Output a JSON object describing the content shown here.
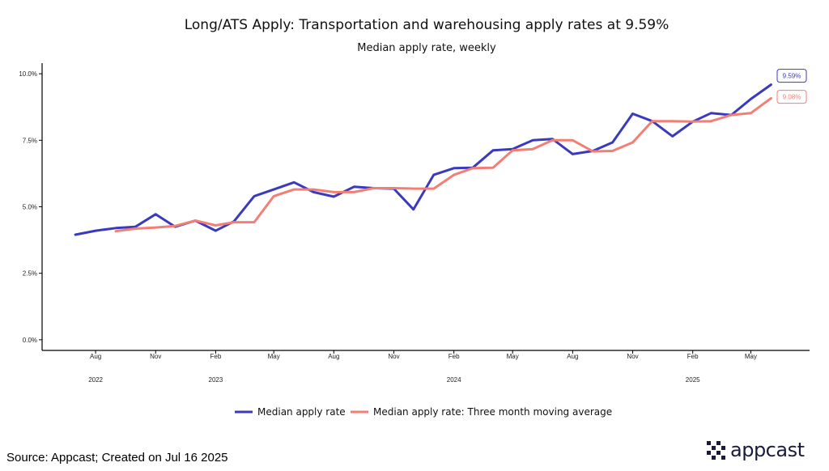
{
  "chart_data": {
    "type": "line",
    "title": "Long/ATS Apply: Transportation and warehousing apply rates at 9.59%",
    "subtitle": "Median apply rate, weekly",
    "xlabel": "",
    "ylabel": "",
    "y_tick_labels": [
      "0.0%",
      "2.5%",
      "5.0%",
      "7.5%",
      "10.0%"
    ],
    "y_tick_values": [
      0,
      2.5,
      5,
      7.5,
      10
    ],
    "ylim": [
      -0.4,
      10.4
    ],
    "x_tick_labels": [
      {
        "month": "Aug",
        "date": "2022-08-01"
      },
      {
        "month": "Nov",
        "date": "2022-11-01"
      },
      {
        "month": "Feb",
        "date": "2023-02-01"
      },
      {
        "month": "May",
        "date": "2023-05-01"
      },
      {
        "month": "Aug",
        "date": "2023-08-01"
      },
      {
        "month": "Nov",
        "date": "2023-11-01"
      },
      {
        "month": "Feb",
        "date": "2024-02-01"
      },
      {
        "month": "May",
        "date": "2024-05-01"
      },
      {
        "month": "Aug",
        "date": "2024-08-01"
      },
      {
        "month": "Nov",
        "date": "2024-11-01"
      },
      {
        "month": "Feb",
        "date": "2025-02-01"
      },
      {
        "month": "May",
        "date": "2025-05-01"
      }
    ],
    "year_labels": [
      {
        "year": "2022",
        "date": "2022-08-01"
      },
      {
        "year": "2023",
        "date": "2023-02-01"
      },
      {
        "year": "2024",
        "date": "2024-02-01"
      },
      {
        "year": "2025",
        "date": "2025-02-01"
      }
    ],
    "xlim": [
      "2022-05-11",
      "2025-07-30"
    ],
    "grid": false,
    "legend_position": "bottom",
    "series": [
      {
        "name": "Median apply rate",
        "color": "#3a3abf",
        "end_label": "9.59%",
        "points": [
          [
            "2022-07-01",
            3.95
          ],
          [
            "2022-08-01",
            4.1
          ],
          [
            "2022-09-01",
            4.2
          ],
          [
            "2022-10-01",
            4.25
          ],
          [
            "2022-11-01",
            4.72
          ],
          [
            "2022-12-01",
            4.25
          ],
          [
            "2023-01-01",
            4.48
          ],
          [
            "2023-02-01",
            4.1
          ],
          [
            "2023-03-01",
            4.45
          ],
          [
            "2023-04-01",
            5.4
          ],
          [
            "2023-05-01",
            5.65
          ],
          [
            "2023-06-01",
            5.92
          ],
          [
            "2023-07-01",
            5.55
          ],
          [
            "2023-08-01",
            5.38
          ],
          [
            "2023-09-01",
            5.75
          ],
          [
            "2023-10-01",
            5.7
          ],
          [
            "2023-11-01",
            5.68
          ],
          [
            "2023-12-01",
            4.9
          ],
          [
            "2024-01-01",
            6.2
          ],
          [
            "2024-02-01",
            6.45
          ],
          [
            "2024-03-01",
            6.47
          ],
          [
            "2024-04-01",
            7.12
          ],
          [
            "2024-05-01",
            7.17
          ],
          [
            "2024-06-01",
            7.5
          ],
          [
            "2024-07-01",
            7.55
          ],
          [
            "2024-08-01",
            6.98
          ],
          [
            "2024-09-01",
            7.1
          ],
          [
            "2024-10-01",
            7.42
          ],
          [
            "2024-11-01",
            8.5
          ],
          [
            "2024-12-01",
            8.22
          ],
          [
            "2025-01-01",
            7.65
          ],
          [
            "2025-02-01",
            8.2
          ],
          [
            "2025-03-01",
            8.52
          ],
          [
            "2025-04-01",
            8.45
          ],
          [
            "2025-05-01",
            9.05
          ],
          [
            "2025-06-01",
            9.59
          ]
        ]
      },
      {
        "name": "Median apply rate: Three month moving average",
        "color": "#f27f76",
        "end_label": "9.08%",
        "points": [
          [
            "2022-09-01",
            4.08
          ],
          [
            "2022-10-01",
            4.18
          ],
          [
            "2022-11-01",
            4.22
          ],
          [
            "2022-12-01",
            4.28
          ],
          [
            "2023-01-01",
            4.48
          ],
          [
            "2023-02-01",
            4.3
          ],
          [
            "2023-03-01",
            4.42
          ],
          [
            "2023-04-01",
            4.42
          ],
          [
            "2023-05-01",
            5.4
          ],
          [
            "2023-06-01",
            5.65
          ],
          [
            "2023-07-01",
            5.65
          ],
          [
            "2023-08-01",
            5.55
          ],
          [
            "2023-09-01",
            5.55
          ],
          [
            "2023-10-01",
            5.7
          ],
          [
            "2023-11-01",
            5.7
          ],
          [
            "2023-12-01",
            5.68
          ],
          [
            "2024-01-01",
            5.68
          ],
          [
            "2024-02-01",
            6.2
          ],
          [
            "2024-03-01",
            6.45
          ],
          [
            "2024-04-01",
            6.47
          ],
          [
            "2024-05-01",
            7.12
          ],
          [
            "2024-06-01",
            7.17
          ],
          [
            "2024-07-01",
            7.5
          ],
          [
            "2024-08-01",
            7.5
          ],
          [
            "2024-09-01",
            7.08
          ],
          [
            "2024-10-01",
            7.1
          ],
          [
            "2024-11-01",
            7.42
          ],
          [
            "2024-12-01",
            8.22
          ],
          [
            "2025-01-01",
            8.22
          ],
          [
            "2025-02-01",
            8.2
          ],
          [
            "2025-03-01",
            8.22
          ],
          [
            "2025-04-01",
            8.45
          ],
          [
            "2025-05-01",
            8.52
          ],
          [
            "2025-06-01",
            9.08
          ]
        ]
      }
    ]
  },
  "footer": {
    "source_text": "Source: Appcast; Created on Jul 16 2025"
  },
  "brand": {
    "logo_text": "appcast",
    "logo_color": "#1a1a40"
  }
}
